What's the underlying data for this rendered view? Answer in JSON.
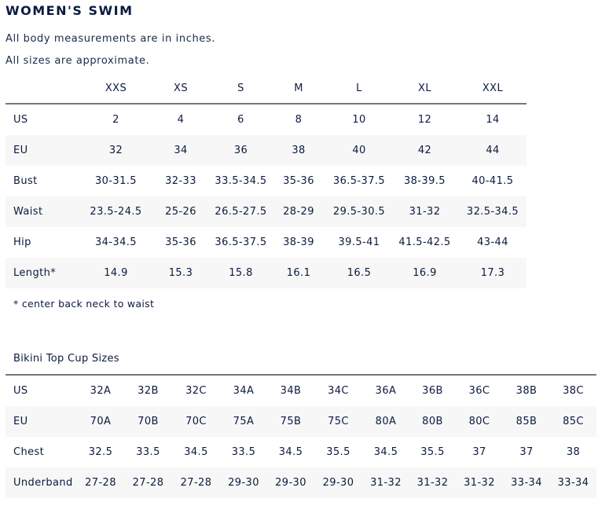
{
  "title": "WOMEN'S SWIM",
  "notes": [
    "All body measurements are in inches.",
    "All sizes are approximate."
  ],
  "size_chart": {
    "headers": [
      "XXS",
      "XS",
      "S",
      "M",
      "L",
      "XL",
      "XXL"
    ],
    "rows": [
      {
        "label": "US",
        "values": [
          "2",
          "4",
          "6",
          "8",
          "10",
          "12",
          "14"
        ]
      },
      {
        "label": "EU",
        "values": [
          "32",
          "34",
          "36",
          "38",
          "40",
          "42",
          "44"
        ]
      },
      {
        "label": "Bust",
        "values": [
          "30-31.5",
          "32-33",
          "33.5-34.5",
          "35-36",
          "36.5-37.5",
          "38-39.5",
          "40-41.5"
        ]
      },
      {
        "label": "Waist",
        "values": [
          "23.5-24.5",
          "25-26",
          "26.5-27.5",
          "28-29",
          "29.5-30.5",
          "31-32",
          "32.5-34.5"
        ]
      },
      {
        "label": "Hip",
        "values": [
          "34-34.5",
          "35-36",
          "36.5-37.5",
          "38-39",
          "39.5-41",
          "41.5-42.5",
          "43-44"
        ]
      },
      {
        "label": "Length*",
        "values": [
          "14.9",
          "15.3",
          "15.8",
          "16.1",
          "16.5",
          "16.9",
          "17.3"
        ]
      }
    ],
    "footnote": "* center back neck to waist"
  },
  "cup_chart": {
    "title": "Bikini Top Cup Sizes",
    "rows": [
      {
        "label": "US",
        "values": [
          "32A",
          "32B",
          "32C",
          "34A",
          "34B",
          "34C",
          "36A",
          "36B",
          "36C",
          "38B",
          "38C"
        ]
      },
      {
        "label": "EU",
        "values": [
          "70A",
          "70B",
          "70C",
          "75A",
          "75B",
          "75C",
          "80A",
          "80B",
          "80C",
          "85B",
          "85C"
        ]
      },
      {
        "label": "Chest",
        "values": [
          "32.5",
          "33.5",
          "34.5",
          "33.5",
          "34.5",
          "35.5",
          "34.5",
          "35.5",
          "37",
          "37",
          "38"
        ]
      },
      {
        "label": "Underband",
        "values": [
          "27-28",
          "27-28",
          "27-28",
          "29-30",
          "29-30",
          "29-30",
          "31-32",
          "31-32",
          "31-32",
          "33-34",
          "33-34"
        ]
      }
    ]
  }
}
